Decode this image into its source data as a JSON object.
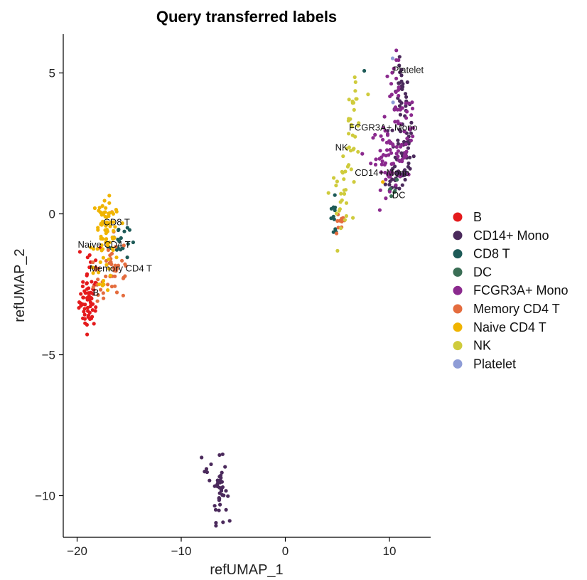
{
  "chart_data": {
    "type": "scatter",
    "title": "Query transferred labels",
    "xlabel": "refUMAP_1",
    "ylabel": "refUMAP_2",
    "xlim": [
      -21.5,
      14
    ],
    "ylim": [
      -11.5,
      6.3
    ],
    "xticks": [
      {
        "value": -20,
        "label": "−20"
      },
      {
        "value": -10,
        "label": "−10"
      },
      {
        "value": 0,
        "label": "0"
      },
      {
        "value": 10,
        "label": "10"
      }
    ],
    "yticks": [
      {
        "value": 5,
        "label": "5"
      },
      {
        "value": 0,
        "label": "0"
      },
      {
        "value": -5,
        "label": "−5"
      },
      {
        "value": -10,
        "label": "−10"
      }
    ],
    "grid": false,
    "legend_position": "right",
    "series": [
      {
        "name": "B",
        "color": "#E41A1C",
        "clusters": [
          {
            "cx": -18.9,
            "cy": -3.1,
            "sx": 0.45,
            "sy": 0.45,
            "n": 45
          },
          {
            "cx": -18.6,
            "cy": -2.1,
            "sx": 0.55,
            "sy": 0.6,
            "n": 16
          },
          {
            "cx": -19.0,
            "cy": -3.7,
            "sx": 0.25,
            "sy": 0.15,
            "n": 8
          }
        ]
      },
      {
        "name": "CD14+ Mono",
        "color": "#4B2A5C",
        "clusters": [
          {
            "cx": 11.2,
            "cy": 4.2,
            "sx": 0.35,
            "sy": 0.55,
            "n": 28
          },
          {
            "cx": 11.2,
            "cy": 2.2,
            "sx": 0.6,
            "sy": 0.7,
            "n": 48
          },
          {
            "cx": 10.7,
            "cy": 1.3,
            "sx": 0.5,
            "sy": 0.3,
            "n": 18
          },
          {
            "cx": -6.3,
            "cy": -9.8,
            "sx": 0.35,
            "sy": 0.55,
            "n": 38
          },
          {
            "cx": -7.5,
            "cy": -9.0,
            "sx": 0.3,
            "sy": 0.3,
            "n": 5
          }
        ]
      },
      {
        "name": "CD8 T",
        "color": "#1D5A57",
        "clusters": [
          {
            "cx": -16.0,
            "cy": -0.9,
            "sx": 0.5,
            "sy": 0.4,
            "n": 18
          },
          {
            "cx": 4.7,
            "cy": -0.2,
            "sx": 0.35,
            "sy": 0.5,
            "n": 12
          },
          {
            "cx": 7.8,
            "cy": 5.2,
            "sx": 0.3,
            "sy": 0.1,
            "n": 1
          }
        ]
      },
      {
        "name": "DC",
        "color": "#3A6E55",
        "clusters": [
          {
            "cx": 10.3,
            "cy": 0.95,
            "sx": 0.2,
            "sy": 0.15,
            "n": 7
          }
        ]
      },
      {
        "name": "FCGR3A+ Mono",
        "color": "#8B2A8E",
        "clusters": [
          {
            "cx": 10.0,
            "cy": 2.0,
            "sx": 0.9,
            "sy": 0.55,
            "n": 55
          },
          {
            "cx": 10.5,
            "cy": 3.7,
            "sx": 0.6,
            "sy": 0.9,
            "n": 30
          },
          {
            "cx": 11.8,
            "cy": 3.0,
            "sx": 0.4,
            "sy": 0.9,
            "n": 18
          }
        ]
      },
      {
        "name": "Memory CD4 T",
        "color": "#E46C3E",
        "clusters": [
          {
            "cx": -16.3,
            "cy": -1.9,
            "sx": 0.8,
            "sy": 0.6,
            "n": 34
          },
          {
            "cx": -18.0,
            "cy": -2.6,
            "sx": 0.5,
            "sy": 0.6,
            "n": 12
          },
          {
            "cx": 5.2,
            "cy": -0.4,
            "sx": 0.3,
            "sy": 0.2,
            "n": 10
          }
        ]
      },
      {
        "name": "Naive CD4 T",
        "color": "#F0B400",
        "clusters": [
          {
            "cx": -17.1,
            "cy": -0.7,
            "sx": 0.6,
            "sy": 0.55,
            "n": 55
          },
          {
            "cx": -17.3,
            "cy": 0.0,
            "sx": 0.35,
            "sy": 0.2,
            "n": 12
          },
          {
            "cx": -17.5,
            "cy": -1.8,
            "sx": 0.45,
            "sy": 0.5,
            "n": 14
          },
          {
            "cx": 9.1,
            "cy": 1.0,
            "sx": 0.2,
            "sy": 0.1,
            "n": 1
          }
        ]
      },
      {
        "name": "NK",
        "color": "#CFCB3C",
        "clusters": [
          {
            "cx": 6.4,
            "cy": 2.7,
            "sx": 0.45,
            "sy": 0.9,
            "n": 30
          },
          {
            "cx": 5.3,
            "cy": 0.7,
            "sx": 0.5,
            "sy": 0.5,
            "n": 20
          },
          {
            "cx": 7.0,
            "cy": 4.0,
            "sx": 0.3,
            "sy": 0.3,
            "n": 5
          }
        ]
      },
      {
        "name": "Platelet",
        "color": "#8E9CD6",
        "clusters": [
          {
            "cx": 10.3,
            "cy": 5.5,
            "sx": 0.1,
            "sy": 0.05,
            "n": 1
          },
          {
            "cx": 10.3,
            "cy": 3.9,
            "sx": 0.1,
            "sy": 0.05,
            "n": 1
          }
        ]
      }
    ],
    "annotations": [
      {
        "text": "Platelet",
        "x": 11.8,
        "y": 5.0
      },
      {
        "text": "FCGR3A+ Mono",
        "x": 9.4,
        "y": 2.95
      },
      {
        "text": "NK",
        "x": 5.4,
        "y": 2.25
      },
      {
        "text": "CD14+ Mono",
        "x": 9.3,
        "y": 1.35
      },
      {
        "text": "DC",
        "x": 10.9,
        "y": 0.55
      },
      {
        "text": "CD8 T",
        "x": -16.2,
        "y": -0.4
      },
      {
        "text": "Naive CD4 T",
        "x": -17.4,
        "y": -1.2
      },
      {
        "text": "Memory CD4 T",
        "x": -15.8,
        "y": -2.05
      },
      {
        "text": "B",
        "x": -18.2,
        "y": -2.9
      }
    ]
  }
}
